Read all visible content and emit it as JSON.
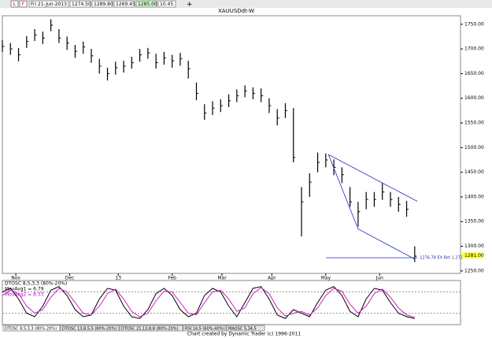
{
  "header": {
    "date": "Fri 21-Jun-2013",
    "open": "1274.50",
    "high": "1289.80",
    "low": "1269.45",
    "close": "1285.00",
    "change": "10.45",
    "buttons": [
      "L",
      "F"
    ]
  },
  "chart_data": [
    {
      "type": "ohlc",
      "title": "XAUUSDdt-W",
      "x": [
        0,
        3,
        6,
        9,
        12,
        15,
        18,
        21,
        24,
        27,
        30,
        33,
        36,
        39,
        42,
        45,
        48,
        51,
        54,
        57,
        60,
        63,
        66,
        69,
        72,
        75,
        78,
        81,
        84,
        87,
        90,
        93,
        96,
        99,
        102,
        105,
        108,
        111,
        114,
        117,
        120,
        123,
        126,
        129,
        132,
        135,
        138,
        141,
        144,
        147,
        150,
        153
      ],
      "series": [
        {
          "name": "XAUUSDdt-W",
          "color": "#000000",
          "high": [
            1718,
            1712,
            1702,
            1726,
            1740,
            1735,
            1760,
            1740,
            1725,
            1708,
            1715,
            1700,
            1680,
            1662,
            1674,
            1676,
            1684,
            1700,
            1702,
            1690,
            1694,
            1688,
            1692,
            1676,
            1632,
            1588,
            1594,
            1598,
            1608,
            1618,
            1626,
            1622,
            1620,
            1600,
            1578,
            1590,
            1580,
            1420,
            1448,
            1490,
            1488,
            1476,
            1460,
            1420,
            1390,
            1410,
            1410,
            1428,
            1410,
            1400,
            1392,
            1300
          ],
          "low": [
            1694,
            1688,
            1675,
            1702,
            1716,
            1710,
            1736,
            1712,
            1698,
            1682,
            1690,
            1672,
            1650,
            1636,
            1648,
            1652,
            1660,
            1674,
            1680,
            1660,
            1668,
            1662,
            1666,
            1640,
            1596,
            1556,
            1566,
            1572,
            1582,
            1592,
            1602,
            1598,
            1592,
            1570,
            1545,
            1560,
            1470,
            1320,
            1400,
            1450,
            1460,
            1444,
            1428,
            1380,
            1340,
            1375,
            1380,
            1394,
            1380,
            1370,
            1360,
            1268
          ],
          "close": [
            1705,
            1700,
            1688,
            1715,
            1728,
            1722,
            1748,
            1722,
            1712,
            1695,
            1704,
            1686,
            1665,
            1650,
            1662,
            1665,
            1672,
            1688,
            1692,
            1672,
            1682,
            1676,
            1680,
            1660,
            1610,
            1570,
            1580,
            1585,
            1595,
            1605,
            1615,
            1610,
            1605,
            1585,
            1560,
            1575,
            1480,
            1390,
            1430,
            1470,
            1475,
            1460,
            1445,
            1390,
            1370,
            1395,
            1395,
            1410,
            1395,
            1385,
            1375,
            1280
          ]
        }
      ],
      "xlim": [
        0,
        170
      ],
      "xticks": [
        {
          "value": 5,
          "label": "Nov"
        },
        {
          "value": 25,
          "label": "Dec"
        },
        {
          "value": 43,
          "label": "13"
        },
        {
          "value": 63,
          "label": "Feb"
        },
        {
          "value": 81.5,
          "label": "Mar"
        },
        {
          "value": 100,
          "label": "Apr"
        },
        {
          "value": 120,
          "label": "May"
        },
        {
          "value": 140,
          "label": "Jun"
        }
      ],
      "ylim": [
        1245,
        1764
      ],
      "yticks": [
        {
          "value": 1250,
          "label": "1250.00"
        },
        {
          "value": 1300,
          "label": "1300.00"
        },
        {
          "value": 1350,
          "label": "1350.00"
        },
        {
          "value": 1400,
          "label": "1400.00"
        },
        {
          "value": 1450,
          "label": "1450.00"
        },
        {
          "value": 1500,
          "label": "1500.00"
        },
        {
          "value": 1550,
          "label": "1550.00"
        },
        {
          "value": 1600,
          "label": "1600.00"
        },
        {
          "value": 1650,
          "label": "1650.00"
        },
        {
          "value": 1700,
          "label": "1700.00"
        },
        {
          "value": 1750,
          "label": "1750.00"
        }
      ],
      "price_tag": {
        "value": 1281,
        "label": "1281.00"
      },
      "target": {
        "value": 1276.78,
        "label": "1276.78 EX Ret 1.272",
        "x": [
          121,
          154
        ]
      },
      "trendlines": [
        {
          "color": "#2030c0",
          "x": [
            121,
            154
          ],
          "y": [
            1486,
            1391
          ]
        },
        {
          "color": "#2030c0",
          "x": [
            121,
            132,
            153
          ],
          "y": [
            1486,
            1335,
            1274
          ]
        }
      ]
    },
    {
      "type": "line",
      "title": "DTOSC 8,5,3,3 (80%-20%)",
      "annotations": [
        "MovAvg1 = 6.79",
        "MovAvg2 = 8.33"
      ],
      "ylim": [
        -10,
        110
      ],
      "yticks": [
        20,
        80
      ],
      "series": [
        {
          "name": "DTOSC",
          "color": "#000000",
          "values": [
            80,
            90,
            60,
            20,
            10,
            40,
            85,
            95,
            70,
            30,
            10,
            15,
            60,
            90,
            85,
            40,
            10,
            5,
            30,
            75,
            90,
            70,
            30,
            10,
            20,
            70,
            90,
            80,
            40,
            10,
            50,
            90,
            95,
            60,
            15,
            5,
            30,
            20,
            10,
            50,
            85,
            95,
            70,
            25,
            10,
            60,
            90,
            85,
            50,
            20,
            10,
            5
          ]
        },
        {
          "name": "MovAvg",
          "color": "#d020c0",
          "values": [
            70,
            85,
            75,
            40,
            20,
            30,
            65,
            90,
            80,
            50,
            20,
            15,
            40,
            75,
            88,
            60,
            25,
            10,
            20,
            55,
            82,
            80,
            50,
            20,
            15,
            50,
            80,
            85,
            60,
            25,
            35,
            75,
            92,
            75,
            35,
            12,
            20,
            25,
            15,
            35,
            70,
            90,
            82,
            45,
            20,
            40,
            75,
            88,
            65,
            35,
            15,
            8
          ]
        }
      ]
    }
  ],
  "tabs": [
    "DTOSC 8,5,3,3 (80%-20%)",
    "DTOSC 13,8,5,5 (80%-20%)",
    "DTOSC 21,13,8,8 (80%-20%)",
    "RSI 14,5 (60%-40%)",
    "MAOSC 5,34,5"
  ],
  "footer": "Chart created by Dynamic Trader  (c) 1996-2011"
}
